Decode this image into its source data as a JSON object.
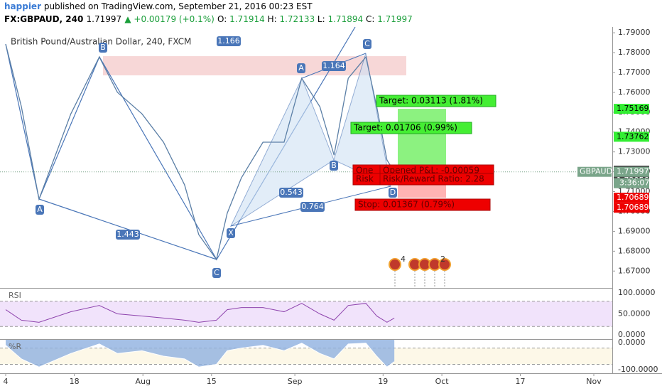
{
  "header": {
    "user": "happier",
    "published": "published on TradingView.com, September 21, 2016 00:23 EST",
    "symbol": "FX:GBPAUD, 240",
    "last": "1.71997",
    "change": "▲ +0.00179 (+0.1%)",
    "ohlc": [
      "O:",
      "1.71914",
      "H:",
      "1.72133",
      "L:",
      "1.71894",
      "C:",
      "1.71997"
    ]
  },
  "chart_data": {
    "type": "line",
    "title": "British Pound/Australian Dollar, 240, FXCM",
    "x": [
      0,
      3.2,
      6.8,
      13.3,
      19.1,
      22.8,
      27.8,
      32.2,
      36.5,
      39.4,
      43,
      45.2,
      48.1,
      52.5,
      56.8,
      60.4,
      64.1,
      67,
      69.9,
      73.5,
      75.7,
      77.8,
      79.3
    ],
    "series": [
      {
        "name": "GBPAUD",
        "color": "#5b7fa6",
        "values": [
          1.7843,
          1.7528,
          1.7062,
          1.7492,
          1.7778,
          1.76,
          1.7492,
          1.7349,
          1.7134,
          1.6883,
          1.6758,
          1.6991,
          1.717,
          1.7349,
          1.7349,
          1.7671,
          1.7528,
          1.7284,
          1.7671,
          1.7778,
          1.7528,
          1.7259,
          1.71997
        ]
      }
    ],
    "xlim": [
      -1.16,
      123.77
    ],
    "xticks": [
      {
        "value": 0,
        "label": "4"
      },
      {
        "value": 14,
        "label": "18"
      },
      {
        "value": 28,
        "label": "Aug"
      },
      {
        "value": 42,
        "label": "15"
      },
      {
        "value": 59,
        "label": "Sep"
      },
      {
        "value": 77,
        "label": "19"
      },
      {
        "value": 89,
        "label": "Oct"
      },
      {
        "value": 105,
        "label": "17"
      },
      {
        "value": 120,
        "label": "Nov"
      }
    ],
    "ylim": [
      1.6615,
      1.7929
    ],
    "yticks": [
      {
        "value": 1.79,
        "label": "1.79000"
      },
      {
        "value": 1.78,
        "label": "1.78000"
      },
      {
        "value": 1.77,
        "label": "1.77000"
      },
      {
        "value": 1.76,
        "label": "1.76000"
      },
      {
        "value": 1.75,
        "label": "1.75000"
      },
      {
        "value": 1.74,
        "label": "1.74000"
      },
      {
        "value": 1.73,
        "label": "1.73000"
      },
      {
        "value": 1.72,
        "label": "1.72000"
      },
      {
        "value": 1.71,
        "label": "1.71000"
      },
      {
        "value": 1.7,
        "label": "1.70000"
      },
      {
        "value": 1.69,
        "label": "1.69000"
      },
      {
        "value": 1.68,
        "label": "1.68000"
      },
      {
        "value": 1.67,
        "label": "1.67000"
      }
    ],
    "price_marks": [
      {
        "value": 1.75169,
        "color": "#33ee33"
      },
      {
        "value": 1.73762,
        "color": "#33ee33"
      },
      {
        "value": 1.72056,
        "color": "#444444"
      },
      {
        "value": 1.72056,
        "color": "#444444"
      },
      {
        "value": 1.71997,
        "color": "#7aa58a"
      },
      {
        "value": 1.70689,
        "color": "#ee0000"
      },
      {
        "value": 1.70689,
        "color": "#ee0000"
      }
    ],
    "last_name": "GBPAUD",
    "countdown": "3:36:07",
    "position": {
      "target": "Target: 0.03113 (1.81%)",
      "target2": "Target: 0.01706 (0.99%)",
      "pnl": "Opened P&L: -0.00059",
      "ratio": "Risk/Reward Ratio: 2.28",
      "stop": "Stop: 0.01367 (0.79%)",
      "overlap": [
        "One",
        "Risk",
        "Stop:"
      ]
    },
    "pattern_labels": [
      "1.166",
      "1.164",
      "0.543",
      "0.764",
      "1.443",
      "B",
      "A",
      "C",
      "A",
      "B",
      "C",
      "X",
      "D"
    ],
    "events": [
      "4",
      "2"
    ],
    "rsi": {
      "name": "RSI",
      "color": "#8e44ad",
      "values": [
        60,
        35,
        30,
        55,
        70,
        50,
        45,
        40,
        35,
        30,
        35,
        60,
        65,
        65,
        55,
        75,
        50,
        35,
        70,
        75,
        45,
        30,
        40
      ],
      "ylim": [
        -10,
        110
      ],
      "yticks": [
        {
          "value": 100,
          "label": "100.0000"
        },
        {
          "value": 50,
          "label": "50.0000"
        },
        {
          "value": 0,
          "label": "0.0000"
        }
      ],
      "bands": [
        20,
        80
      ]
    },
    "willr": {
      "name": "%R",
      "color": "#8fb0e0",
      "values": [
        -10,
        -60,
        -90,
        -40,
        -5,
        -40,
        -30,
        -50,
        -60,
        -90,
        -80,
        -30,
        -20,
        -10,
        -30,
        -2,
        -40,
        -60,
        -5,
        -2,
        -50,
        -90,
        -70
      ],
      "ylim": [
        -112.8,
        10.3
      ],
      "yticks": [
        {
          "value": 0,
          "label": "0.0000"
        },
        {
          "value": -100,
          "label": "-100.0000"
        }
      ],
      "bands": [
        -20,
        -80
      ]
    }
  }
}
